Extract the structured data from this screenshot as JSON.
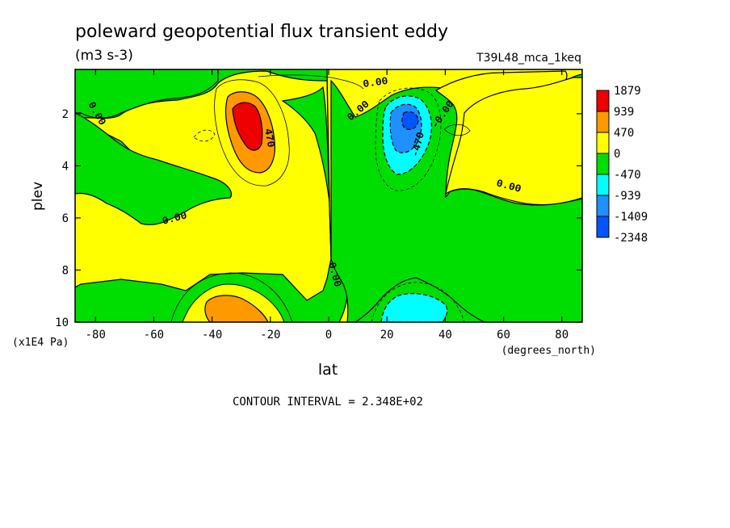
{
  "chart_data": {
    "type": "heatmap",
    "title": "poleward geopotential flux transient eddy",
    "units": "(m3 s-3)",
    "run_id": "T39L48_mca_1keq",
    "xlabel": "lat",
    "x_units": "(degrees_north)",
    "ylabel": "plev",
    "y_units": "(x1E4 Pa)",
    "x_range": [
      -87,
      87
    ],
    "y_range": [
      10,
      0.3
    ],
    "x_ticks": [
      "-80",
      "-60",
      "-40",
      "-20",
      "0",
      "20",
      "40",
      "60",
      "80"
    ],
    "y_ticks": [
      "2",
      "4",
      "6",
      "8",
      "10"
    ],
    "contour_interval_text": "CONTOUR INTERVAL = 2.348E+02",
    "colorbar": {
      "labels": [
        "1879",
        "939",
        "470",
        "0",
        "-470",
        "-939",
        "-1409",
        "-2348"
      ],
      "colors": [
        "#ee0000",
        "#ff9900",
        "#ffff00",
        "#00dd00",
        "#00ffff",
        "#1e90ff",
        "#0055ff"
      ]
    },
    "contour_labels": [
      "0.00",
      "0.00",
      "0.00",
      "0.00",
      "0.00",
      "0.00",
      "470",
      "-470",
      "-0.00",
      "0.00",
      "0.00"
    ],
    "features": [
      {
        "name": "positive maximum",
        "lat": -30,
        "plev": 2.3,
        "value": 1879
      },
      {
        "name": "negative minimum",
        "lat": 28,
        "plev": 2.2,
        "value": -2348
      },
      {
        "name": "near-surface positive",
        "lat": -27,
        "plev": 9.5,
        "value": 939
      },
      {
        "name": "near-surface negative",
        "lat": 30,
        "plev": 9.3,
        "value": -939
      }
    ]
  }
}
